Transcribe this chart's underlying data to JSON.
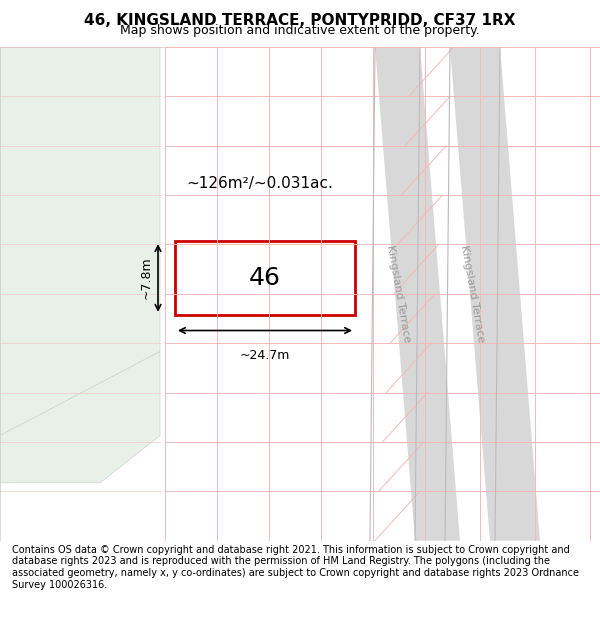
{
  "title": "46, KINGSLAND TERRACE, PONTYPRIDD, CF37 1RX",
  "subtitle": "Map shows position and indicative extent of the property.",
  "footer": "Contains OS data © Crown copyright and database right 2021. This information is subject to Crown copyright and database rights 2023 and is reproduced with the permission of HM Land Registry. The polygons (including the associated geometry, namely x, y co-ordinates) are subject to Crown copyright and database rights 2023 Ordnance Survey 100026316.",
  "map_bg": "#f0f0f0",
  "plot_bg": "#ffffff",
  "green_area_color": "#e8f0e8",
  "street_color": "#e8e8e8",
  "grid_color": "#f5b8b8",
  "road_line_color": "#cccccc",
  "property_rect_color": "#cc0000",
  "property_fill": "#ffffff",
  "property_label": "46",
  "area_label": "~126m²/~0.031ac.",
  "width_label": "~24.7m",
  "height_label": "~7.8m",
  "road_label_top": "Kingsland Terrace",
  "road_label_bottom": "Kingsland Terrace",
  "title_fontsize": 11,
  "subtitle_fontsize": 9,
  "footer_fontsize": 7
}
